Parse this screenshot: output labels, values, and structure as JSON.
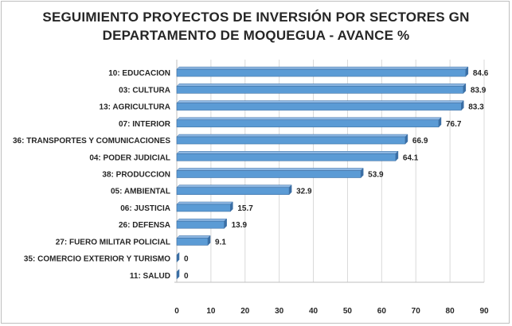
{
  "chart_data": {
    "type": "bar",
    "orientation": "horizontal",
    "title_line1": "SEGUIMIENTO PROYECTOS DE INVERSIÓN POR SECTORES GN",
    "title_line2": "DEPARTAMENTO DE MOQUEGUA - AVANCE %",
    "categories": [
      "10: EDUCACION",
      "03: CULTURA",
      "13: AGRICULTURA",
      "07: INTERIOR",
      "36: TRANSPORTES Y COMUNICACIONES",
      "04: PODER JUDICIAL",
      "38: PRODUCCION",
      "05: AMBIENTAL",
      "06: JUSTICIA",
      "26: DEFENSA",
      "27: FUERO MILITAR POLICIAL",
      "35: COMERCIO EXTERIOR Y TURISMO",
      "11: SALUD"
    ],
    "values": [
      84.6,
      83.9,
      83.3,
      76.7,
      66.9,
      64.1,
      53.9,
      32.9,
      15.7,
      13.9,
      9.1,
      0,
      0
    ],
    "value_labels": [
      "84.6",
      "83.9",
      "83.3",
      "76.7",
      "66.9",
      "64.1",
      "53.9",
      "32.9",
      "15.7",
      "13.9",
      "9.1",
      "0",
      "0"
    ],
    "xlim": [
      0,
      90
    ],
    "xticks": [
      0,
      10,
      20,
      30,
      40,
      50,
      60,
      70,
      80,
      90
    ],
    "xtick_labels": [
      "0",
      "10",
      "20",
      "30",
      "40",
      "50",
      "60",
      "70",
      "80",
      "90"
    ],
    "grid": true,
    "legend": "none",
    "bar_color": "#5b9bd5",
    "bar_edge_color": "#3d6fa3"
  }
}
